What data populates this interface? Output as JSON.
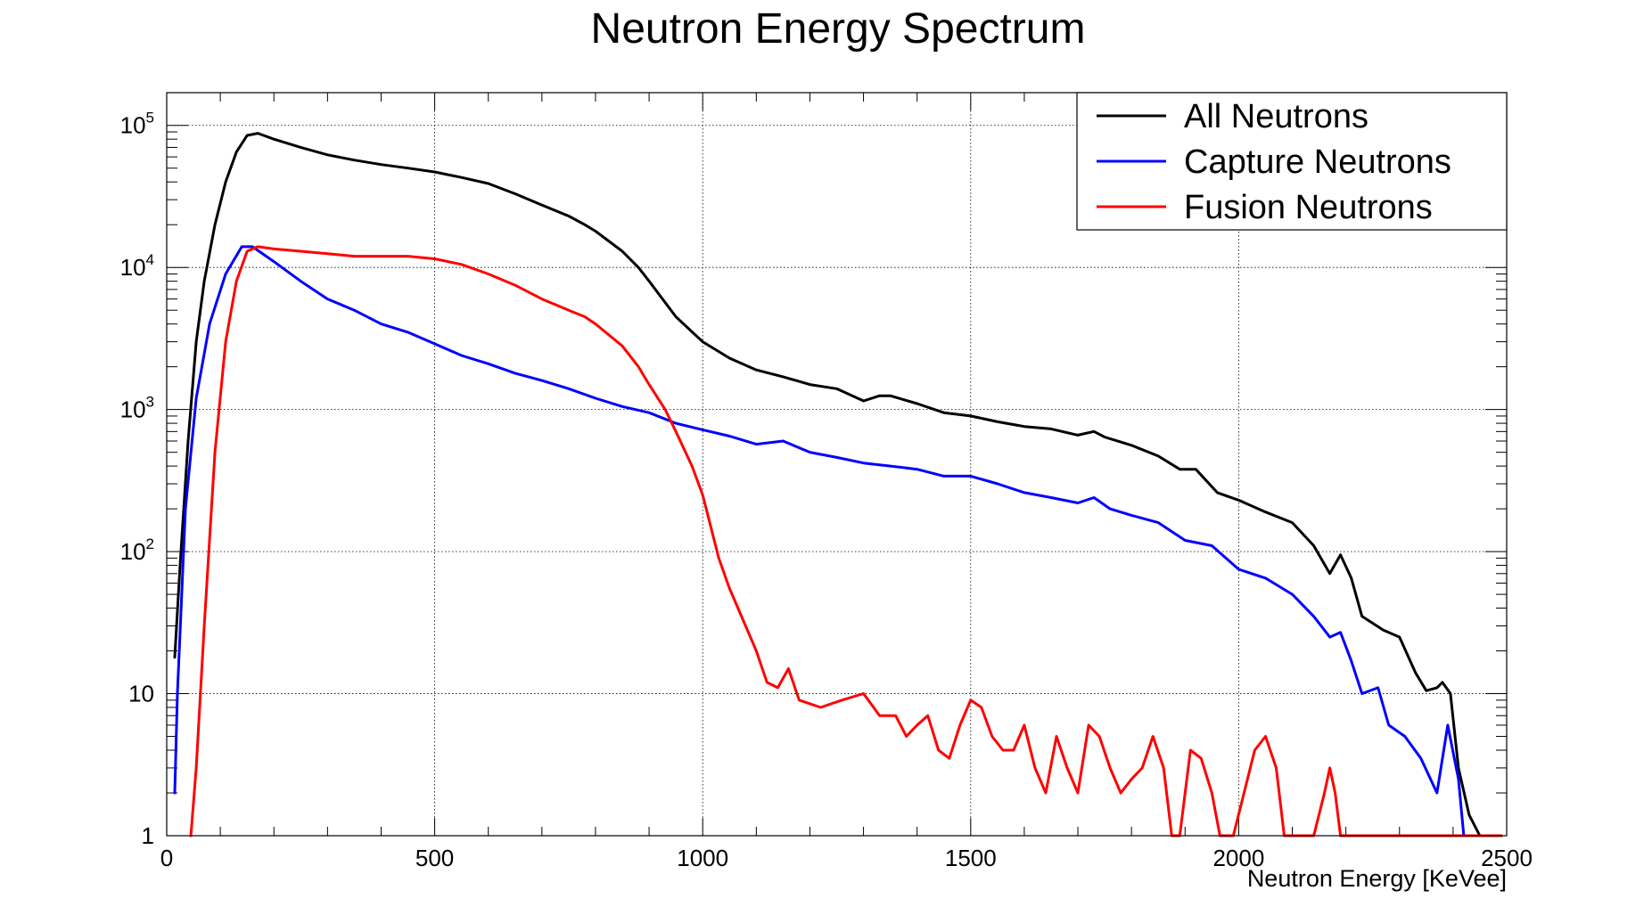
{
  "chart_data": {
    "type": "line",
    "title": "Neutron Energy Spectrum",
    "xlabel": "Neutron Energy [KeVee]",
    "ylabel": "",
    "xlim": [
      0,
      2500
    ],
    "ylim": [
      1,
      170000
    ],
    "y_scale": "log",
    "grid": true,
    "legend_position": "top-right",
    "x_ticks": [
      0,
      500,
      1000,
      1500,
      2000,
      2500
    ],
    "x_tick_labels": [
      "0",
      "500",
      "1000",
      "1500",
      "2000",
      "2500"
    ],
    "y_ticks": [
      1,
      10,
      100,
      1000,
      10000,
      100000
    ],
    "y_tick_labels": [
      {
        "base": "1",
        "exp": ""
      },
      {
        "base": "10",
        "exp": ""
      },
      {
        "base": "10",
        "exp": "2"
      },
      {
        "base": "10",
        "exp": "3"
      },
      {
        "base": "10",
        "exp": "4"
      },
      {
        "base": "10",
        "exp": "5"
      }
    ],
    "series": [
      {
        "name": "All Neutrons",
        "color": "#000000",
        "points": [
          [
            15,
            18
          ],
          [
            25,
            80
          ],
          [
            40,
            600
          ],
          [
            55,
            3000
          ],
          [
            70,
            8000
          ],
          [
            90,
            20000
          ],
          [
            110,
            40000
          ],
          [
            130,
            65000
          ],
          [
            150,
            85000
          ],
          [
            170,
            88000
          ],
          [
            200,
            80000
          ],
          [
            250,
            70000
          ],
          [
            300,
            62000
          ],
          [
            350,
            57000
          ],
          [
            400,
            53000
          ],
          [
            450,
            50000
          ],
          [
            500,
            47000
          ],
          [
            550,
            43000
          ],
          [
            600,
            39000
          ],
          [
            650,
            33000
          ],
          [
            700,
            27500
          ],
          [
            750,
            23000
          ],
          [
            780,
            20000
          ],
          [
            800,
            18000
          ],
          [
            850,
            13000
          ],
          [
            880,
            10000
          ],
          [
            900,
            8000
          ],
          [
            950,
            4500
          ],
          [
            1000,
            3000
          ],
          [
            1050,
            2300
          ],
          [
            1100,
            1900
          ],
          [
            1150,
            1700
          ],
          [
            1200,
            1500
          ],
          [
            1250,
            1400
          ],
          [
            1300,
            1150
          ],
          [
            1330,
            1250
          ],
          [
            1350,
            1250
          ],
          [
            1400,
            1100
          ],
          [
            1450,
            950
          ],
          [
            1500,
            900
          ],
          [
            1550,
            820
          ],
          [
            1600,
            760
          ],
          [
            1650,
            730
          ],
          [
            1700,
            660
          ],
          [
            1730,
            700
          ],
          [
            1750,
            640
          ],
          [
            1800,
            560
          ],
          [
            1850,
            470
          ],
          [
            1890,
            380
          ],
          [
            1920,
            380
          ],
          [
            1960,
            260
          ],
          [
            2000,
            230
          ],
          [
            2050,
            190
          ],
          [
            2100,
            160
          ],
          [
            2140,
            110
          ],
          [
            2170,
            70
          ],
          [
            2190,
            95
          ],
          [
            2210,
            65
          ],
          [
            2230,
            35
          ],
          [
            2270,
            28
          ],
          [
            2300,
            25
          ],
          [
            2330,
            14
          ],
          [
            2350,
            10.5
          ],
          [
            2370,
            11
          ],
          [
            2380,
            12
          ],
          [
            2395,
            10
          ],
          [
            2410,
            3
          ],
          [
            2430,
            1.4
          ],
          [
            2450,
            1.0
          ],
          [
            2490,
            1.0
          ]
        ]
      },
      {
        "name": "Capture Neutrons",
        "color": "#0000ff",
        "points": [
          [
            15,
            2
          ],
          [
            20,
            10
          ],
          [
            35,
            200
          ],
          [
            55,
            1200
          ],
          [
            80,
            4000
          ],
          [
            110,
            9000
          ],
          [
            140,
            14000
          ],
          [
            160,
            14000
          ],
          [
            200,
            11000
          ],
          [
            250,
            8000
          ],
          [
            300,
            6000
          ],
          [
            350,
            5000
          ],
          [
            400,
            4000
          ],
          [
            450,
            3500
          ],
          [
            500,
            2900
          ],
          [
            550,
            2400
          ],
          [
            600,
            2100
          ],
          [
            650,
            1800
          ],
          [
            700,
            1600
          ],
          [
            750,
            1400
          ],
          [
            800,
            1200
          ],
          [
            850,
            1050
          ],
          [
            900,
            950
          ],
          [
            950,
            800
          ],
          [
            1000,
            720
          ],
          [
            1050,
            650
          ],
          [
            1100,
            570
          ],
          [
            1150,
            600
          ],
          [
            1200,
            500
          ],
          [
            1250,
            460
          ],
          [
            1300,
            420
          ],
          [
            1350,
            400
          ],
          [
            1400,
            380
          ],
          [
            1450,
            340
          ],
          [
            1500,
            340
          ],
          [
            1550,
            300
          ],
          [
            1600,
            260
          ],
          [
            1650,
            240
          ],
          [
            1700,
            220
          ],
          [
            1730,
            240
          ],
          [
            1760,
            200
          ],
          [
            1800,
            180
          ],
          [
            1850,
            160
          ],
          [
            1900,
            120
          ],
          [
            1950,
            110
          ],
          [
            2000,
            75
          ],
          [
            2050,
            65
          ],
          [
            2100,
            50
          ],
          [
            2140,
            35
          ],
          [
            2170,
            25
          ],
          [
            2190,
            27
          ],
          [
            2210,
            17
          ],
          [
            2230,
            10
          ],
          [
            2260,
            11
          ],
          [
            2280,
            6
          ],
          [
            2310,
            5
          ],
          [
            2340,
            3.5
          ],
          [
            2370,
            2
          ],
          [
            2390,
            6
          ],
          [
            2410,
            2.5
          ],
          [
            2420,
            1
          ]
        ]
      },
      {
        "name": "Fusion Neutrons",
        "color": "#ff0000",
        "points": [
          [
            45,
            1
          ],
          [
            55,
            3
          ],
          [
            70,
            30
          ],
          [
            90,
            500
          ],
          [
            110,
            3000
          ],
          [
            130,
            8000
          ],
          [
            150,
            13000
          ],
          [
            170,
            14000
          ],
          [
            200,
            13500
          ],
          [
            250,
            13000
          ],
          [
            300,
            12500
          ],
          [
            350,
            12000
          ],
          [
            400,
            12000
          ],
          [
            450,
            12000
          ],
          [
            500,
            11500
          ],
          [
            550,
            10500
          ],
          [
            600,
            9000
          ],
          [
            650,
            7500
          ],
          [
            700,
            6000
          ],
          [
            750,
            5000
          ],
          [
            780,
            4500
          ],
          [
            800,
            4000
          ],
          [
            850,
            2800
          ],
          [
            880,
            2000
          ],
          [
            900,
            1500
          ],
          [
            930,
            1000
          ],
          [
            950,
            700
          ],
          [
            980,
            400
          ],
          [
            1000,
            250
          ],
          [
            1030,
            90
          ],
          [
            1050,
            55
          ],
          [
            1080,
            30
          ],
          [
            1100,
            20
          ],
          [
            1120,
            12
          ],
          [
            1140,
            11
          ],
          [
            1160,
            15
          ],
          [
            1180,
            9
          ],
          [
            1220,
            8
          ],
          [
            1260,
            9
          ],
          [
            1300,
            10
          ],
          [
            1330,
            7
          ],
          [
            1360,
            7
          ],
          [
            1380,
            5
          ],
          [
            1400,
            6
          ],
          [
            1420,
            7
          ],
          [
            1440,
            4
          ],
          [
            1460,
            3.5
          ],
          [
            1480,
            6
          ],
          [
            1500,
            9
          ],
          [
            1520,
            8
          ],
          [
            1540,
            5
          ],
          [
            1560,
            4
          ],
          [
            1580,
            4
          ],
          [
            1600,
            6
          ],
          [
            1620,
            3
          ],
          [
            1640,
            2
          ],
          [
            1660,
            5
          ],
          [
            1680,
            3
          ],
          [
            1700,
            2
          ],
          [
            1720,
            6
          ],
          [
            1740,
            5
          ],
          [
            1760,
            3
          ],
          [
            1780,
            2
          ],
          [
            1800,
            2.5
          ],
          [
            1820,
            3
          ],
          [
            1840,
            5
          ],
          [
            1860,
            3
          ],
          [
            1875,
            1
          ],
          [
            1890,
            1
          ],
          [
            1910,
            4
          ],
          [
            1930,
            3.5
          ],
          [
            1950,
            2
          ],
          [
            1965,
            1
          ],
          [
            1990,
            1
          ],
          [
            2010,
            2
          ],
          [
            2030,
            4
          ],
          [
            2050,
            5
          ],
          [
            2070,
            3
          ],
          [
            2085,
            1
          ],
          [
            2100,
            1
          ],
          [
            2120,
            1
          ],
          [
            2140,
            1
          ],
          [
            2160,
            2
          ],
          [
            2170,
            3
          ],
          [
            2180,
            2
          ],
          [
            2190,
            1
          ],
          [
            2200,
            1
          ],
          [
            2220,
            1
          ],
          [
            2240,
            1
          ],
          [
            2260,
            1
          ],
          [
            2300,
            1
          ],
          [
            2400,
            1
          ],
          [
            2490,
            1
          ]
        ]
      }
    ]
  }
}
